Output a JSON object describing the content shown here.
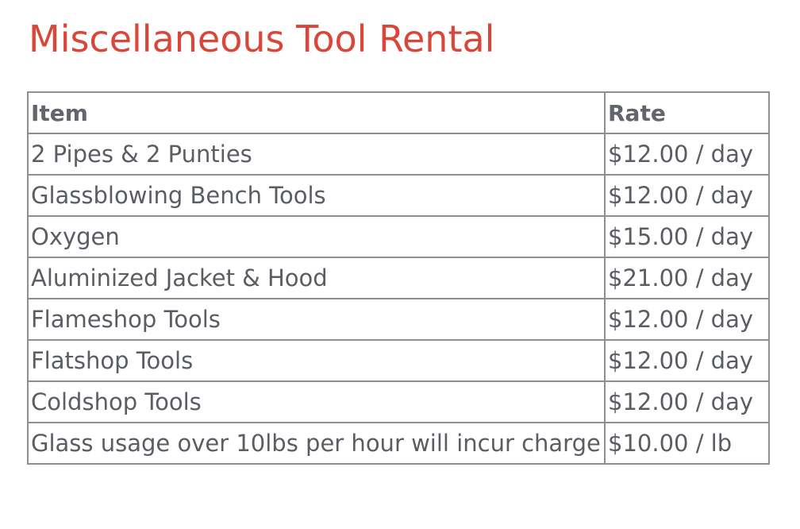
{
  "title": "Miscellaneous Tool Rental",
  "table": {
    "headers": {
      "item": "Item",
      "rate": "Rate"
    },
    "rows": [
      {
        "item": "2 Pipes & 2 Punties",
        "rate": "$12.00 / day"
      },
      {
        "item": "Glassblowing Bench Tools",
        "rate": "$12.00 / day"
      },
      {
        "item": "Oxygen",
        "rate": "$15.00 / day"
      },
      {
        "item": "Aluminized Jacket & Hood",
        "rate": "$21.00 / day"
      },
      {
        "item": "Flameshop Tools",
        "rate": "$12.00 / day"
      },
      {
        "item": "Flatshop Tools",
        "rate": "$12.00 / day"
      },
      {
        "item": "Coldshop Tools",
        "rate": "$12.00 / day"
      },
      {
        "item": "Glass usage over 10lbs per hour will incur charge",
        "rate": "$10.00 / lb"
      }
    ]
  },
  "colors": {
    "title": "#d8473a",
    "text": "#5a5d63",
    "border": "#8f8f8f"
  }
}
